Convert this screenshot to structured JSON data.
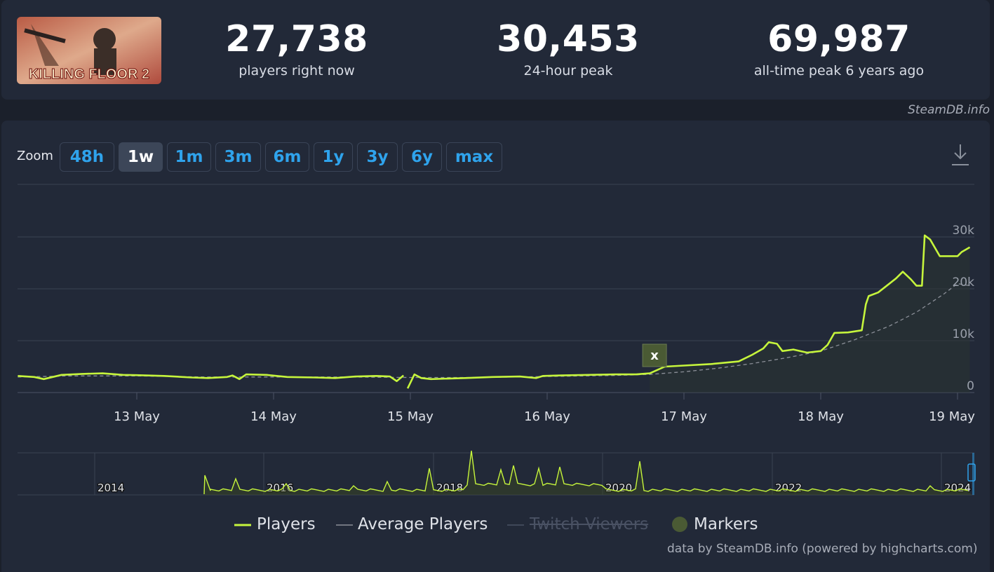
{
  "game": {
    "logo_text": "KILLING FLOOR 2"
  },
  "stats": [
    {
      "value": "27,738",
      "label": "players right now"
    },
    {
      "value": "30,453",
      "label": "24-hour peak"
    },
    {
      "value": "69,987",
      "label": "all-time peak 6 years ago"
    }
  ],
  "credit_top": "SteamDB.info",
  "zoom": {
    "label": "Zoom",
    "options": [
      "48h",
      "1w",
      "1m",
      "3m",
      "6m",
      "1y",
      "3y",
      "6y",
      "max"
    ],
    "active": "1w"
  },
  "legend": {
    "players": "Players",
    "average": "Average Players",
    "twitch": "Twitch Viewers",
    "markers": "Markers"
  },
  "credit_bottom": "data by SteamDB.info (powered by highcharts.com)",
  "colors": {
    "players": "#c6f53c",
    "average": "#8b8f98",
    "marker": "#4a5a34",
    "accent": "#2fa3ec",
    "grid": "#3a4252"
  },
  "chart_data": {
    "type": "line",
    "x_unit": "day of May (2024)",
    "y_ticks": [
      "0",
      "10k",
      "20k",
      "30k"
    ],
    "ylim": [
      0,
      30000
    ],
    "x_ticks": [
      "13 May",
      "14 May",
      "15 May",
      "16 May",
      "17 May",
      "18 May",
      "19 May"
    ],
    "marker_label": "x",
    "marker_x": 16.78,
    "series": [
      {
        "name": "Players",
        "points": [
          [
            12.13,
            3200
          ],
          [
            12.25,
            3000
          ],
          [
            12.32,
            2600
          ],
          [
            12.45,
            3400
          ],
          [
            12.6,
            3600
          ],
          [
            12.75,
            3700
          ],
          [
            12.9,
            3400
          ],
          [
            13.0,
            3350
          ],
          [
            13.2,
            3200
          ],
          [
            13.4,
            2900
          ],
          [
            13.52,
            2800
          ],
          [
            13.66,
            3000
          ],
          [
            13.7,
            3300
          ],
          [
            13.75,
            2600
          ],
          [
            13.8,
            3500
          ],
          [
            13.95,
            3400
          ],
          [
            14.1,
            3000
          ],
          [
            14.3,
            2900
          ],
          [
            14.45,
            2800
          ],
          [
            14.6,
            3100
          ],
          [
            14.75,
            3200
          ],
          [
            14.85,
            3100
          ],
          [
            14.9,
            2200
          ],
          [
            14.95,
            3300
          ],
          [
            14.96,
            0
          ],
          [
            14.98,
            800
          ],
          [
            15.03,
            3500
          ],
          [
            15.08,
            2800
          ],
          [
            15.15,
            2600
          ],
          [
            15.4,
            2800
          ],
          [
            15.6,
            3000
          ],
          [
            15.8,
            3100
          ],
          [
            15.92,
            2800
          ],
          [
            15.97,
            3200
          ],
          [
            16.1,
            3300
          ],
          [
            16.3,
            3400
          ],
          [
            16.5,
            3500
          ],
          [
            16.65,
            3500
          ],
          [
            16.75,
            3700
          ],
          [
            16.86,
            5000
          ],
          [
            17.0,
            5200
          ],
          [
            17.2,
            5500
          ],
          [
            17.4,
            6000
          ],
          [
            17.5,
            7300
          ],
          [
            17.58,
            8500
          ],
          [
            17.62,
            9700
          ],
          [
            17.68,
            9400
          ],
          [
            17.72,
            8000
          ],
          [
            17.8,
            8300
          ],
          [
            17.9,
            7700
          ],
          [
            18.0,
            8000
          ],
          [
            18.05,
            9200
          ],
          [
            18.1,
            11500
          ],
          [
            18.2,
            11600
          ],
          [
            18.3,
            12000
          ],
          [
            18.33,
            17000
          ],
          [
            18.35,
            18600
          ],
          [
            18.42,
            19300
          ],
          [
            18.55,
            22000
          ],
          [
            18.6,
            23300
          ],
          [
            18.66,
            21800
          ],
          [
            18.7,
            20600
          ],
          [
            18.74,
            20600
          ],
          [
            18.76,
            30300
          ],
          [
            18.8,
            29500
          ],
          [
            18.87,
            26300
          ],
          [
            18.95,
            26300
          ],
          [
            19.0,
            26300
          ],
          [
            19.03,
            27100
          ],
          [
            19.09,
            28000
          ]
        ]
      },
      {
        "name": "Average Players",
        "points": [
          [
            12.13,
            3000
          ],
          [
            12.5,
            3200
          ],
          [
            13.0,
            3200
          ],
          [
            13.5,
            3000
          ],
          [
            14.0,
            3000
          ],
          [
            14.5,
            3000
          ],
          [
            15.0,
            2900
          ],
          [
            15.5,
            2900
          ],
          [
            16.0,
            3100
          ],
          [
            16.5,
            3300
          ],
          [
            16.75,
            3500
          ],
          [
            17.0,
            4000
          ],
          [
            17.25,
            4700
          ],
          [
            17.5,
            5600
          ],
          [
            17.75,
            6700
          ],
          [
            18.0,
            8000
          ],
          [
            18.25,
            10200
          ],
          [
            18.5,
            12800
          ],
          [
            18.7,
            15500
          ],
          [
            18.9,
            19000
          ],
          [
            19.0,
            21000
          ],
          [
            19.09,
            20600
          ]
        ]
      }
    ],
    "navigator": {
      "year_labels": [
        "2014",
        "2016",
        "2018",
        "2020",
        "2022",
        "2024"
      ]
    }
  }
}
